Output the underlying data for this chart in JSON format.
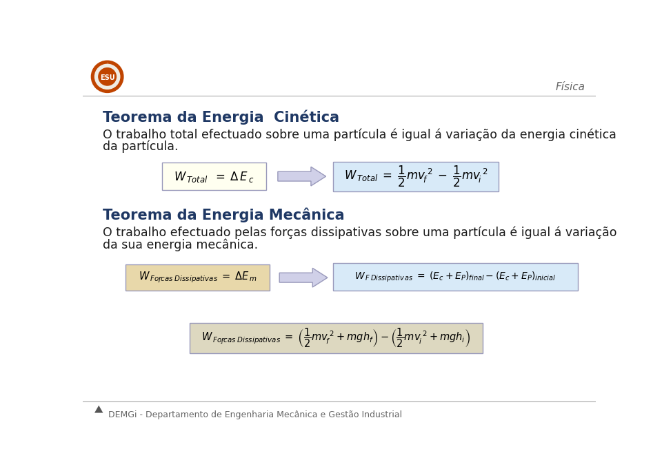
{
  "bg_color": "#ffffff",
  "title_color": "#1f3864",
  "text_color": "#1a1a1a",
  "fisica_color": "#666666",
  "header_line_color": "#aaaaaa",
  "box1_fill": "#fffff0",
  "box1_edge": "#9999bb",
  "box2_fill": "#d8eaf8",
  "box2_edge": "#9999bb",
  "box3_fill": "#e8d8aa",
  "box3_edge": "#9999bb",
  "box4_fill": "#d8eaf8",
  "box4_edge": "#9999bb",
  "box5_fill": "#ddd8c0",
  "box5_edge": "#9999bb",
  "arrow_fill": "#d0d0e8",
  "arrow_edge": "#9999bb",
  "title1": "Teorema da Energia  Cinética",
  "para1_line1": "O trabalho total efectuado sobre uma partícula é igual á variação da energia cinética",
  "para1_line2": "da partícula.",
  "title2": "Teorema da Energia Mecânica",
  "para2_line1": "O trabalho efectuado pelas forças dissipativas sobre uma partícula é igual á variação",
  "para2_line2": "da sua energia mecânica.",
  "footer": "DEMGi - Departamento de Engenharia Mecânica e Gestão Industrial",
  "fisica": "Física",
  "logo_color1": "#c04400",
  "logo_color2": "#d06020"
}
